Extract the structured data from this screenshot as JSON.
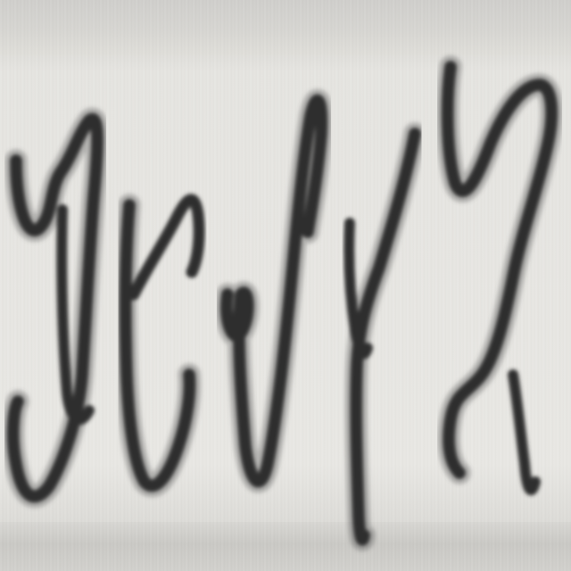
{
  "image": {
    "kind": "scanned handwritten word fragment, heavily enlarged and vertically stretched",
    "background_color": "#e6e5e1",
    "ink_color": "#2e2e2e",
    "glyph_count": 5
  }
}
